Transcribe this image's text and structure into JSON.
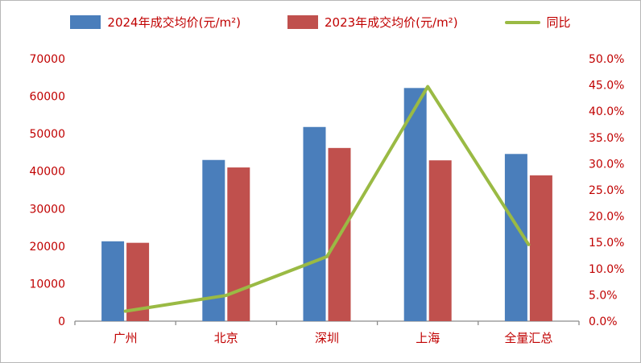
{
  "chart_data": {
    "type": "bar",
    "subtype": "bar-line-combo",
    "title": "",
    "categories": [
      "广州",
      "北京",
      "深圳",
      "上海",
      "全量汇总"
    ],
    "series": [
      {
        "name": "2024年成交均价(元/m²)",
        "type": "bar",
        "axis": "left",
        "color": "#4a7ebb",
        "values": [
          21300,
          43000,
          51800,
          62200,
          44600
        ]
      },
      {
        "name": "2023年成交均价(元/m²)",
        "type": "bar",
        "axis": "left",
        "color": "#c0504d",
        "values": [
          20900,
          41000,
          46200,
          42900,
          38900
        ]
      },
      {
        "name": "同比",
        "type": "line",
        "axis": "right",
        "color": "#9aba44",
        "values": [
          1.9,
          4.9,
          12.3,
          44.7,
          14.6
        ]
      }
    ],
    "left_axis": {
      "min": 0,
      "max": 70000,
      "step": 10000,
      "tick_labels": [
        "0",
        "10000",
        "20000",
        "30000",
        "40000",
        "50000",
        "60000",
        "70000"
      ]
    },
    "right_axis": {
      "min": 0,
      "max": 50,
      "step": 5,
      "tick_labels": [
        "0.0%",
        "5.0%",
        "10.0%",
        "15.0%",
        "20.0%",
        "25.0%",
        "30.0%",
        "35.0%",
        "40.0%",
        "45.0%",
        "50.0%"
      ]
    },
    "legend_position": "top",
    "grid": false,
    "text_color": "#c00000",
    "axis_line_color": "#8c8c8c"
  }
}
